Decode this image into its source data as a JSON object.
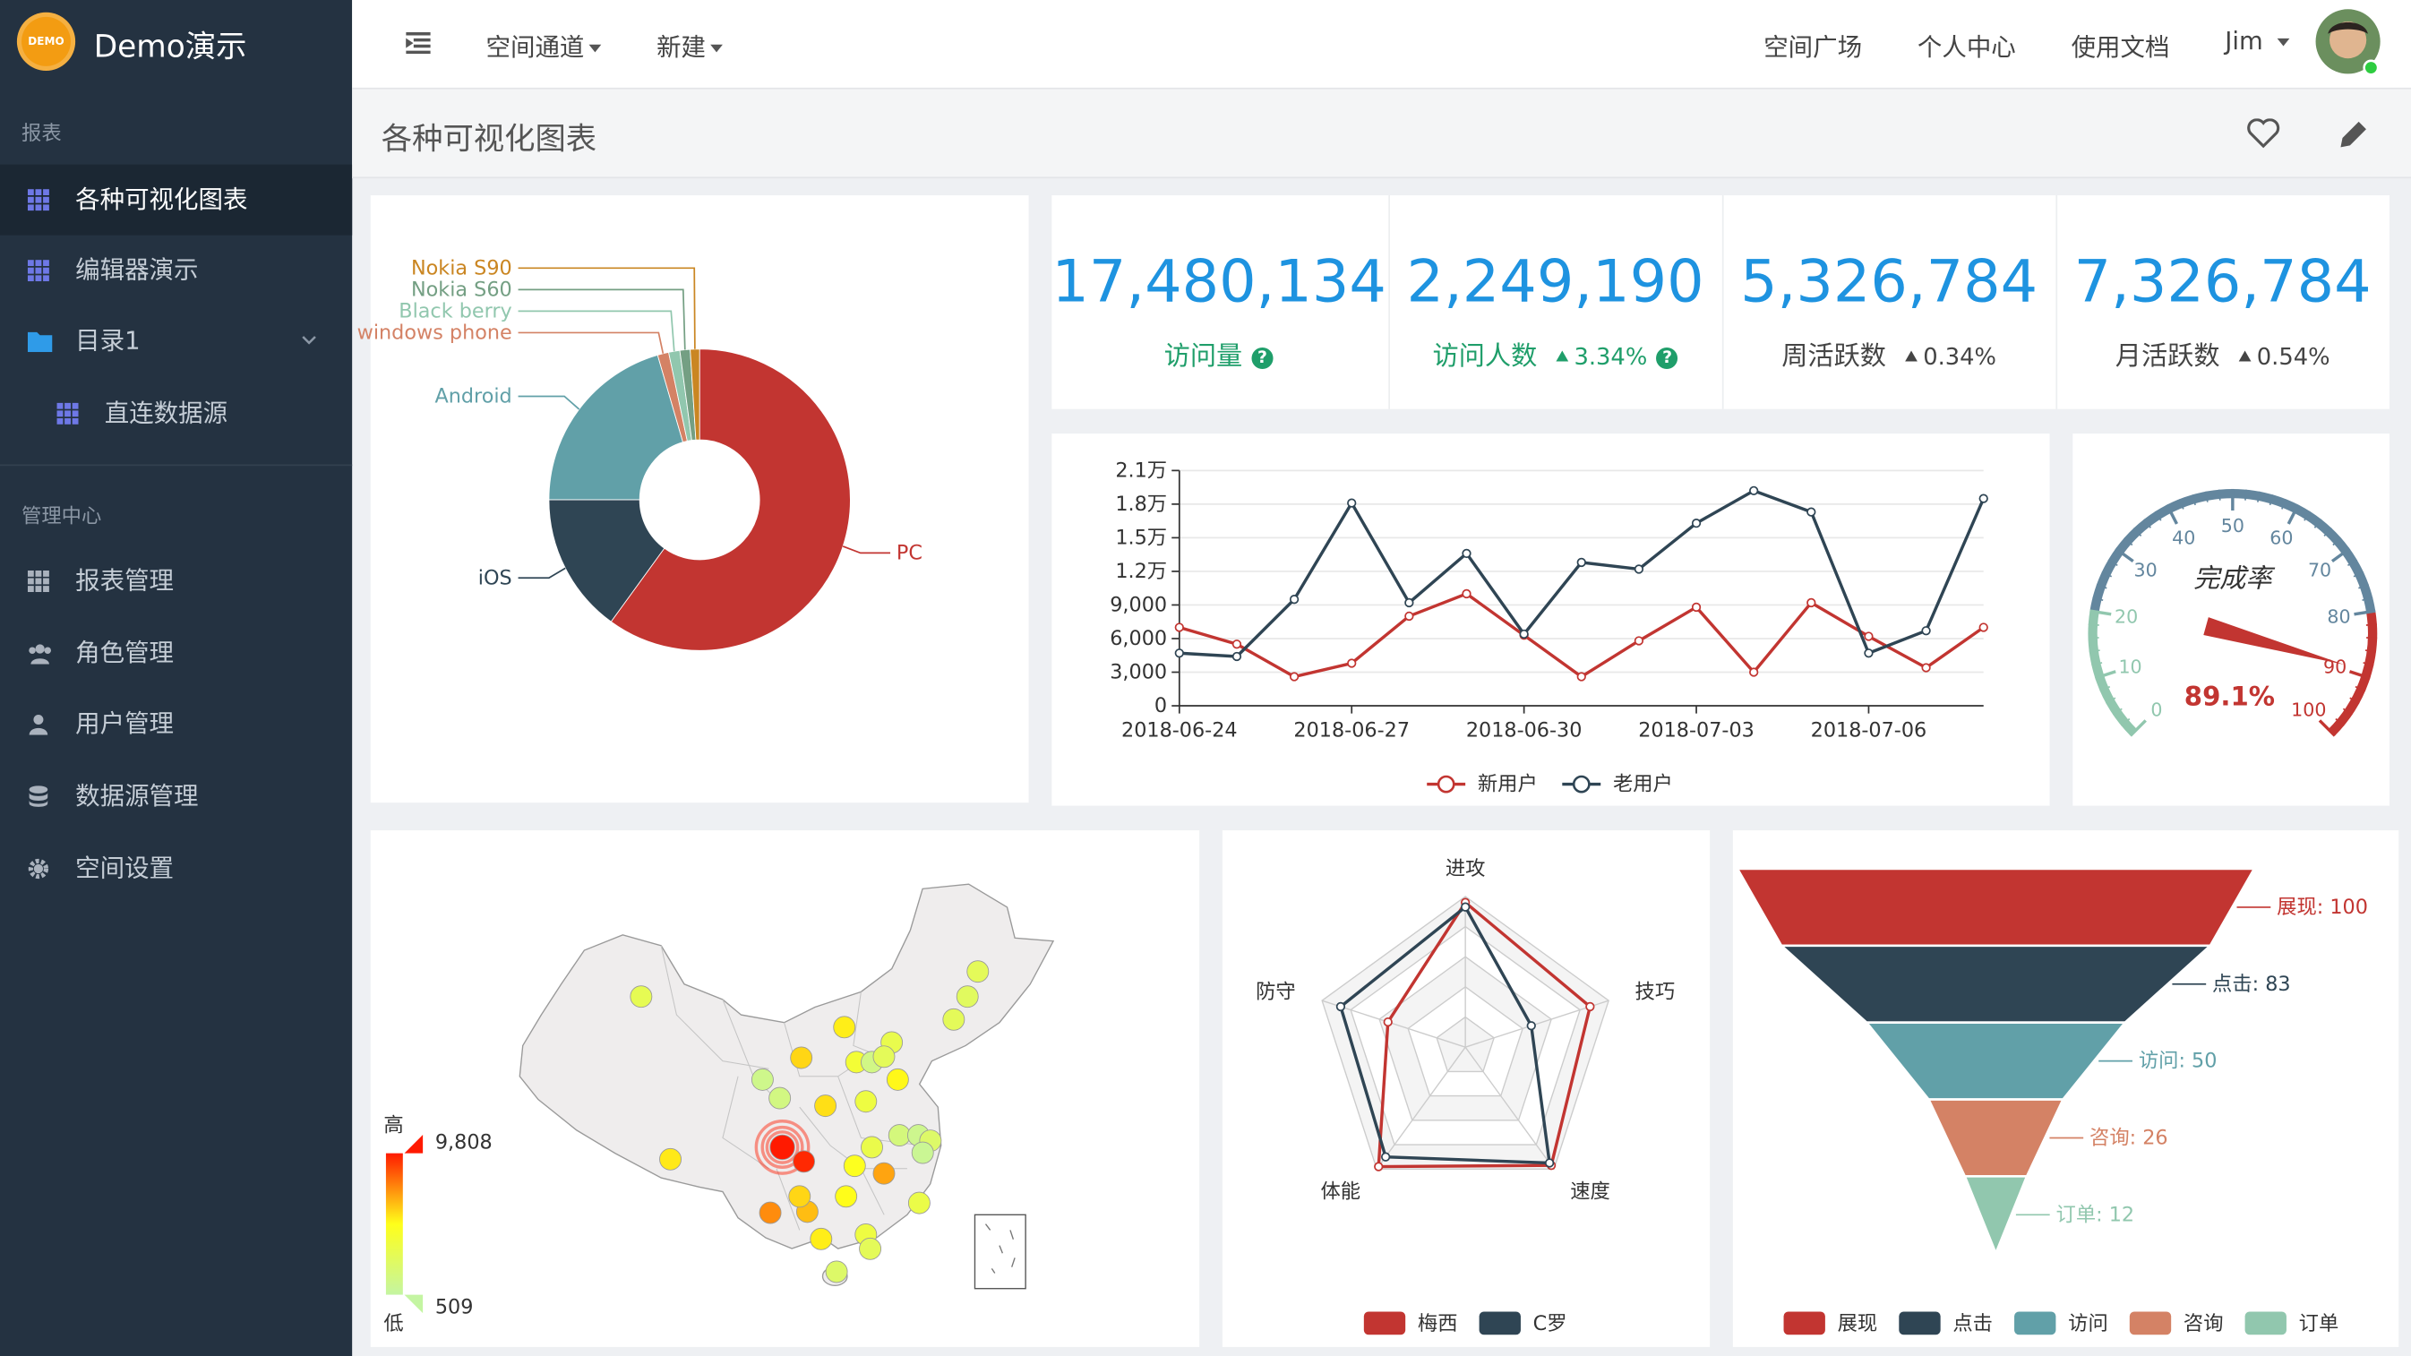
{
  "sidebar": {
    "logo": "DEMO",
    "brand": "Demo演示",
    "sections": [
      {
        "title": "报表",
        "items": [
          "各种可视化图表",
          "编辑器演示",
          "目录1",
          "直连数据源"
        ]
      },
      {
        "title": "管理中心",
        "items": [
          "报表管理",
          "角色管理",
          "用户管理",
          "数据源管理",
          "空间设置"
        ]
      }
    ]
  },
  "topbar": {
    "menus": [
      "空间通道",
      "新建"
    ],
    "links": [
      "空间广场",
      "个人中心",
      "使用文档"
    ],
    "user": "Jim"
  },
  "page_title": "各种可视化图表",
  "stats": [
    {
      "value": "17,480,134",
      "label": "访问量"
    },
    {
      "value": "2,249,190",
      "label": "访问人数",
      "change": "3.34%"
    },
    {
      "value": "5,326,784",
      "label": "周活跃数",
      "change": "0.34%"
    },
    {
      "value": "7,326,784",
      "label": "月活跃数",
      "change": "0.54%"
    }
  ],
  "chart_data": [
    {
      "type": "pie",
      "categories": [
        "PC",
        "iOS",
        "Android",
        "windows phone",
        "Black berry",
        "Nokia S60",
        "Nokia S90"
      ],
      "values": [
        60,
        15,
        20.5,
        1.2,
        1.2,
        1.1,
        1.0
      ],
      "colors": [
        "#c23531",
        "#2f4554",
        "#61a0a8",
        "#d48265",
        "#91c7ae",
        "#749f83",
        "#ca8622"
      ]
    },
    {
      "type": "line",
      "categories": [
        "2018-06-24",
        null,
        null,
        "2018-06-27",
        null,
        null,
        "2018-06-30",
        null,
        null,
        "2018-07-03",
        null,
        null,
        "2018-07-06",
        null,
        null
      ],
      "series": [
        {
          "name": "新用户",
          "color": "#c23531",
          "values": [
            7000,
            5500,
            2600,
            3800,
            8000,
            10000,
            6300,
            2600,
            5800,
            8800,
            3000,
            9200,
            6200,
            3400,
            7000
          ]
        },
        {
          "name": "老用户",
          "color": "#2f4554",
          "values": [
            4700,
            4400,
            9500,
            18100,
            9200,
            13600,
            6400,
            12800,
            12200,
            16300,
            19200,
            17300,
            4700,
            6700,
            18500
          ]
        }
      ],
      "ylim": [
        0,
        21000
      ],
      "yticks": [
        0,
        {
          "value": 3000,
          "label": "3,000"
        },
        {
          "value": 6000,
          "label": "6,000"
        },
        {
          "value": 9000,
          "label": "9,000"
        },
        {
          "value": 12000,
          "label": "1.2万"
        },
        {
          "value": 15000,
          "label": "1.5万"
        },
        {
          "value": 18000,
          "label": "1.8万"
        },
        {
          "value": 21000,
          "label": "2.1万"
        }
      ],
      "grid": true
    },
    {
      "type": "gauge",
      "title": "完成率",
      "value": 89.1,
      "value_label": "89.1%",
      "lim": [
        0,
        100
      ],
      "ticks": [
        0,
        10,
        20,
        30,
        40,
        50,
        60,
        70,
        80,
        90,
        100
      ],
      "bands": [
        {
          "to": 20,
          "color": "#91c7ae"
        },
        {
          "to": 80,
          "color": "#63869e"
        },
        {
          "to": 100,
          "color": "#c23531"
        }
      ]
    },
    {
      "type": "map",
      "points": [
        {
          "lng": 87.1,
          "lat": 43.7,
          "value": 3200
        },
        {
          "lng": 126.2,
          "lat": 46.0,
          "value": 3000
        },
        {
          "lng": 125.0,
          "lat": 43.7,
          "value": 2800
        },
        {
          "lng": 123.4,
          "lat": 41.6,
          "value": 3000
        },
        {
          "lng": 110.7,
          "lat": 40.9,
          "value": 5500
        },
        {
          "lng": 116.2,
          "lat": 39.5,
          "value": 3400
        },
        {
          "lng": 112.1,
          "lat": 37.7,
          "value": 4200
        },
        {
          "lng": 113.9,
          "lat": 37.7,
          "value": 1500
        },
        {
          "lng": 115.3,
          "lat": 38.2,
          "value": 3000
        },
        {
          "lng": 105.7,
          "lat": 38.1,
          "value": 6000
        },
        {
          "lng": 101.2,
          "lat": 36.1,
          "value": 1300
        },
        {
          "lng": 103.2,
          "lat": 34.4,
          "value": 1600
        },
        {
          "lng": 108.5,
          "lat": 33.7,
          "value": 5800
        },
        {
          "lng": 113.2,
          "lat": 34.1,
          "value": 3800
        },
        {
          "lng": 116.9,
          "lat": 36.1,
          "value": 5300
        },
        {
          "lng": 117.1,
          "lat": 31.0,
          "value": 1800
        },
        {
          "lng": 119.3,
          "lat": 31.0,
          "value": 1200
        },
        {
          "lng": 120.7,
          "lat": 30.5,
          "value": 2500
        },
        {
          "lng": 119.8,
          "lat": 29.4,
          "value": 1000
        },
        {
          "lng": 113.9,
          "lat": 29.9,
          "value": 3500
        },
        {
          "lng": 111.9,
          "lat": 28.2,
          "value": 5000
        },
        {
          "lng": 115.3,
          "lat": 27.5,
          "value": 7000
        },
        {
          "lng": 90.5,
          "lat": 28.8,
          "value": 5600
        },
        {
          "lng": 103.5,
          "lat": 29.9,
          "value": 9808
        },
        {
          "lng": 106.0,
          "lat": 28.6,
          "value": 9500
        },
        {
          "lng": 110.9,
          "lat": 25.4,
          "value": 5200
        },
        {
          "lng": 119.4,
          "lat": 24.8,
          "value": 3600
        },
        {
          "lng": 102.1,
          "lat": 23.9,
          "value": 7500
        },
        {
          "lng": 106.4,
          "lat": 24.0,
          "value": 6500
        },
        {
          "lng": 108.0,
          "lat": 21.5,
          "value": 5500
        },
        {
          "lng": 113.2,
          "lat": 21.9,
          "value": 3800
        },
        {
          "lng": 113.7,
          "lat": 20.6,
          "value": 3000
        },
        {
          "lng": 109.8,
          "lat": 18.5,
          "value": 2500
        },
        {
          "lng": 105.5,
          "lat": 25.4,
          "value": 6000
        }
      ],
      "visual_map": {
        "range": [
          509,
          {
            "value": 9808,
            "label": "9,808"
          }
        ],
        "high": "高",
        "low": "低",
        "colors": [
          "#c4f5a2",
          "#ffff1a",
          "#ff1a00"
        ]
      }
    },
    {
      "type": "radar",
      "indicators": [
        "进攻",
        "技巧",
        "速度",
        "体能",
        "防守"
      ],
      "rlim": [
        0,
        100
      ],
      "series": [
        {
          "name": "梅西",
          "color": "#c23531",
          "values": [
            96,
            87,
            97,
            98,
            54
          ]
        },
        {
          "name": "C罗",
          "color": "#2f4554",
          "values": [
            93,
            46,
            95,
            90,
            87
          ]
        }
      ]
    },
    {
      "type": "funnel",
      "categories": [
        "展现",
        "点击",
        "访问",
        "咨询",
        "订单"
      ],
      "values": [
        100,
        83,
        50,
        26,
        12
      ],
      "value_labels": [
        "展现: 100",
        "点击: 83",
        "访问: 50",
        "咨询: 26",
        "订单: 12"
      ],
      "lim": [
        0,
        100
      ],
      "colors": [
        "#c23531",
        "#2f4554",
        "#61a0a8",
        "#d48265",
        "#91c7ae"
      ]
    }
  ]
}
